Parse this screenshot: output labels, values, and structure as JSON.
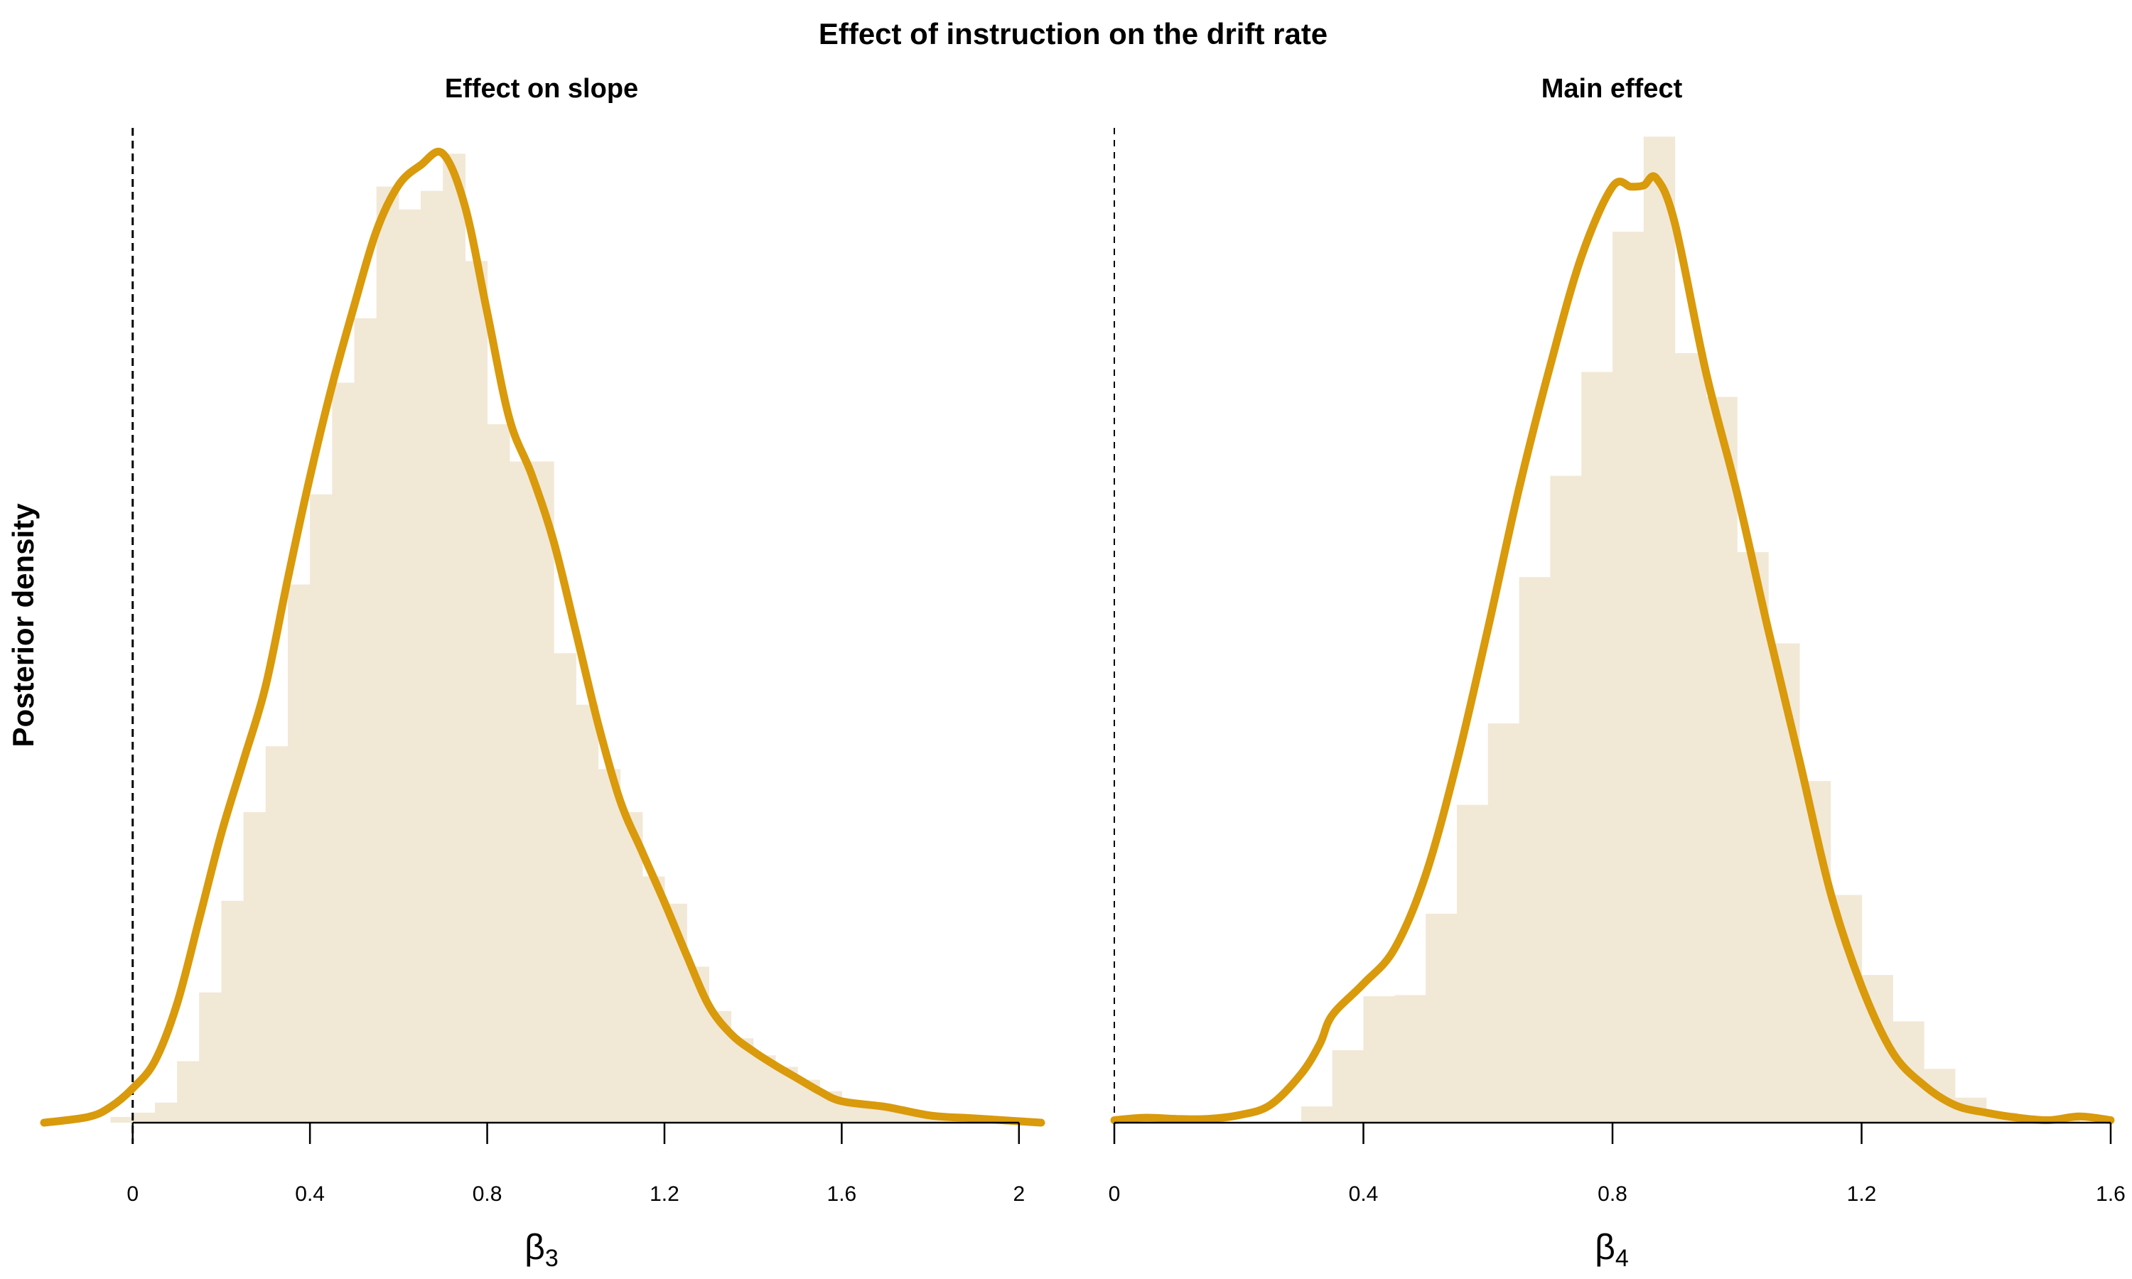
{
  "title": "Effect of instruction on the drift rate",
  "ylabel": "Posterior density",
  "colors": {
    "line": "#D99A0B",
    "hist": "#F2E8D6",
    "ref_line": "#000000"
  },
  "chart_data": [
    {
      "type": "area",
      "title": "Effect on slope",
      "xlabel": "β",
      "xlabel_sub": "3",
      "xlim": [
        -0.2,
        2.05
      ],
      "ticks": [
        0,
        0.4,
        0.8,
        1.2,
        1.6,
        2
      ],
      "tick_labels": [
        "0",
        "0.4",
        "0.8",
        "1.2",
        "1.6",
        "2"
      ],
      "reference_line_x": 0,
      "reference_line_style": "dashed",
      "histogram": {
        "bin_width": 0.05,
        "bins": [
          {
            "start": -0.05,
            "density": 0.04
          },
          {
            "start": 0.0,
            "density": 0.07
          },
          {
            "start": 0.05,
            "density": 0.14
          },
          {
            "start": 0.1,
            "density": 0.43
          },
          {
            "start": 0.15,
            "density": 0.91
          },
          {
            "start": 0.2,
            "density": 1.55
          },
          {
            "start": 0.25,
            "density": 2.17
          },
          {
            "start": 0.3,
            "density": 2.63
          },
          {
            "start": 0.35,
            "density": 3.76
          },
          {
            "start": 0.4,
            "density": 4.39
          },
          {
            "start": 0.45,
            "density": 5.17
          },
          {
            "start": 0.5,
            "density": 5.62
          },
          {
            "start": 0.55,
            "density": 6.54
          },
          {
            "start": 0.6,
            "density": 6.38
          },
          {
            "start": 0.65,
            "density": 6.51
          },
          {
            "start": 0.7,
            "density": 6.77
          },
          {
            "start": 0.75,
            "density": 6.02
          },
          {
            "start": 0.8,
            "density": 4.88
          },
          {
            "start": 0.85,
            "density": 4.62
          },
          {
            "start": 0.9,
            "density": 4.62
          },
          {
            "start": 0.95,
            "density": 3.28
          },
          {
            "start": 1.0,
            "density": 2.92
          },
          {
            "start": 1.05,
            "density": 2.47
          },
          {
            "start": 1.1,
            "density": 2.17
          },
          {
            "start": 1.15,
            "density": 1.72
          },
          {
            "start": 1.2,
            "density": 1.53
          },
          {
            "start": 1.25,
            "density": 1.09
          },
          {
            "start": 1.3,
            "density": 0.78
          },
          {
            "start": 1.35,
            "density": 0.59
          },
          {
            "start": 1.4,
            "density": 0.47
          },
          {
            "start": 1.45,
            "density": 0.39
          },
          {
            "start": 1.5,
            "density": 0.3
          },
          {
            "start": 1.55,
            "density": 0.22
          },
          {
            "start": 1.6,
            "density": 0.15
          },
          {
            "start": 1.65,
            "density": 0.12
          },
          {
            "start": 1.7,
            "density": 0.09
          },
          {
            "start": 1.75,
            "density": 0.06
          },
          {
            "start": 1.8,
            "density": 0.04
          },
          {
            "start": 1.85,
            "density": 0.03
          },
          {
            "start": 1.9,
            "density": 0.02
          },
          {
            "start": 1.95,
            "density": 0.01
          }
        ]
      },
      "density": {
        "x": [
          -0.2,
          -0.1,
          -0.05,
          0.0,
          0.05,
          0.1,
          0.15,
          0.2,
          0.25,
          0.3,
          0.35,
          0.4,
          0.45,
          0.5,
          0.55,
          0.6,
          0.65,
          0.7,
          0.75,
          0.8,
          0.85,
          0.9,
          0.95,
          1.0,
          1.05,
          1.1,
          1.15,
          1.2,
          1.25,
          1.3,
          1.35,
          1.4,
          1.45,
          1.5,
          1.55,
          1.6,
          1.7,
          1.8,
          1.9,
          2.0,
          2.05
        ],
        "y": [
          0.0,
          0.04,
          0.11,
          0.24,
          0.43,
          0.83,
          1.42,
          2.02,
          2.53,
          3.05,
          3.8,
          4.51,
          5.15,
          5.71,
          6.23,
          6.55,
          6.69,
          6.77,
          6.4,
          5.66,
          4.92,
          4.53,
          4.06,
          3.43,
          2.79,
          2.25,
          1.89,
          1.54,
          1.17,
          0.82,
          0.62,
          0.5,
          0.4,
          0.31,
          0.22,
          0.15,
          0.11,
          0.05,
          0.03,
          0.01,
          0.0
        ]
      }
    },
    {
      "type": "area",
      "title": "Main effect",
      "xlabel": "β",
      "xlabel_sub": "4",
      "xlim": [
        0,
        1.6
      ],
      "ticks": [
        0,
        0.4,
        0.8,
        1.2,
        1.6
      ],
      "tick_labels": [
        "0",
        "0.4",
        "0.8",
        "1.2",
        "1.6"
      ],
      "reference_line_x": 0,
      "reference_line_style": "dashed",
      "histogram": {
        "bin_width": 0.05,
        "bins": [
          {
            "start": 0.3,
            "density": 0.13
          },
          {
            "start": 0.35,
            "density": 0.58
          },
          {
            "start": 0.4,
            "density": 1.01
          },
          {
            "start": 0.45,
            "density": 1.02
          },
          {
            "start": 0.5,
            "density": 1.67
          },
          {
            "start": 0.55,
            "density": 2.54
          },
          {
            "start": 0.6,
            "density": 3.19
          },
          {
            "start": 0.65,
            "density": 4.36
          },
          {
            "start": 0.7,
            "density": 5.17
          },
          {
            "start": 0.75,
            "density": 6.0
          },
          {
            "start": 0.8,
            "density": 7.12
          },
          {
            "start": 0.85,
            "density": 7.88
          },
          {
            "start": 0.9,
            "density": 6.15
          },
          {
            "start": 0.95,
            "density": 5.8
          },
          {
            "start": 1.0,
            "density": 4.56
          },
          {
            "start": 1.05,
            "density": 3.83
          },
          {
            "start": 1.1,
            "density": 2.73
          },
          {
            "start": 1.15,
            "density": 1.82
          },
          {
            "start": 1.2,
            "density": 1.18
          },
          {
            "start": 1.25,
            "density": 0.81
          },
          {
            "start": 1.3,
            "density": 0.43
          },
          {
            "start": 1.35,
            "density": 0.2
          },
          {
            "start": 1.4,
            "density": 0.08
          },
          {
            "start": 1.45,
            "density": 0.03
          },
          {
            "start": 1.5,
            "density": 0.02
          }
        ]
      },
      "density": {
        "x": [
          0.0,
          0.05,
          0.1,
          0.15,
          0.2,
          0.25,
          0.3,
          0.33,
          0.35,
          0.4,
          0.45,
          0.5,
          0.55,
          0.6,
          0.65,
          0.7,
          0.75,
          0.8,
          0.83,
          0.85,
          0.87,
          0.9,
          0.95,
          1.0,
          1.05,
          1.1,
          1.15,
          1.2,
          1.25,
          1.3,
          1.35,
          1.4,
          1.45,
          1.5,
          1.55,
          1.6
        ],
        "y": [
          0.02,
          0.04,
          0.03,
          0.03,
          0.06,
          0.14,
          0.39,
          0.63,
          0.86,
          1.11,
          1.39,
          1.98,
          2.88,
          3.95,
          5.07,
          6.05,
          6.92,
          7.48,
          7.48,
          7.49,
          7.55,
          7.19,
          6.0,
          5.03,
          3.94,
          2.9,
          1.84,
          1.09,
          0.56,
          0.3,
          0.14,
          0.08,
          0.04,
          0.02,
          0.05,
          0.02
        ]
      }
    }
  ]
}
